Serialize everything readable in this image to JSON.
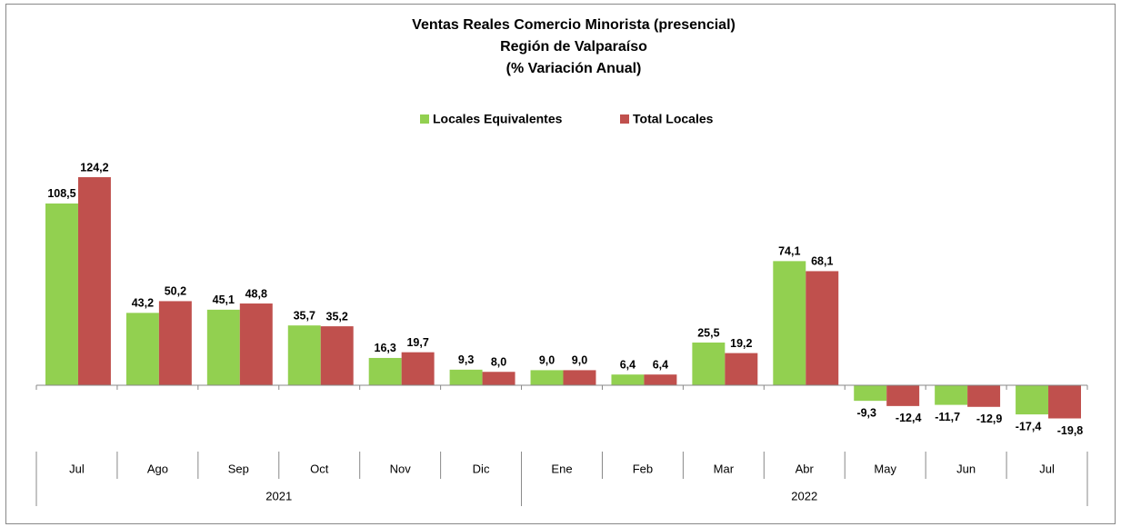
{
  "chart_data": {
    "type": "bar",
    "title": [
      "Ventas Reales Comercio Minorista (presencial)",
      "Región de Valparaíso",
      "(% Variación Anual)"
    ],
    "categories": [
      "Jul",
      "Ago",
      "Sep",
      "Oct",
      "Nov",
      "Dic",
      "Ene",
      "Feb",
      "Mar",
      "Abr",
      "May",
      "Jun",
      "Jul"
    ],
    "category_years": [
      "2021",
      "2021",
      "2021",
      "2021",
      "2021",
      "2021",
      "2022",
      "2022",
      "2022",
      "2022",
      "2022",
      "2022",
      "2022"
    ],
    "series": [
      {
        "name": "Locales Equivalentes",
        "color": "#92d050",
        "values": [
          108.5,
          43.2,
          45.1,
          35.7,
          16.3,
          9.3,
          9.0,
          6.4,
          25.5,
          74.1,
          -9.3,
          -11.7,
          -17.4
        ],
        "value_labels": [
          "108,5",
          "43,2",
          "45,1",
          "35,7",
          "16,3",
          "9,3",
          "9,0",
          "6,4",
          "25,5",
          "74,1",
          "-9,3",
          "-11,7",
          "-17,4"
        ]
      },
      {
        "name": "Total Locales",
        "color": "#c0504d",
        "values": [
          124.2,
          50.2,
          48.8,
          35.2,
          19.7,
          8.0,
          9.0,
          6.4,
          19.2,
          68.1,
          -12.4,
          -12.9,
          -19.8
        ],
        "value_labels": [
          "124,2",
          "50,2",
          "48,8",
          "35,2",
          "19,7",
          "8,0",
          "9,0",
          "6,4",
          "19,2",
          "68,1",
          "-12,4",
          "-12,9",
          "-19,8"
        ]
      }
    ],
    "legend": "top"
  }
}
